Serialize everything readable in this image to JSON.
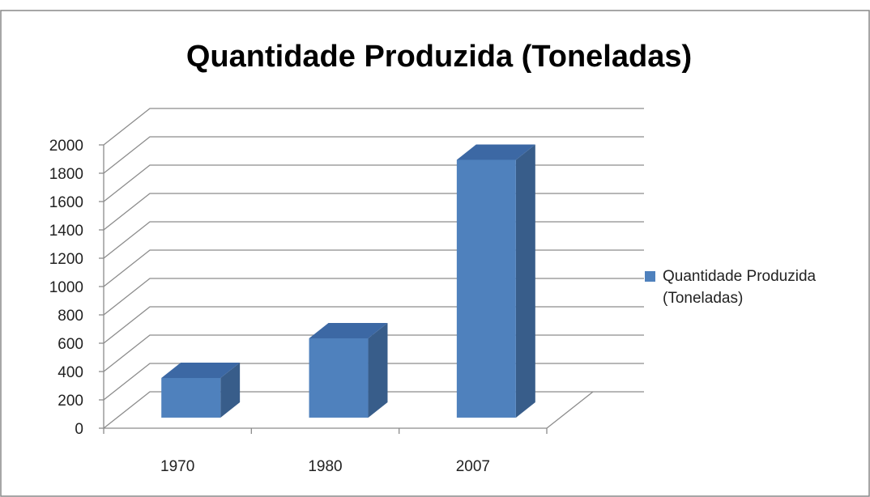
{
  "chart_data": {
    "type": "bar3d",
    "title": "Quantidade Produzida (Toneladas)",
    "categories": [
      "1970",
      "1980",
      "2007"
    ],
    "series": [
      {
        "name": "Quantidade Produzida (Toneladas)",
        "color": "#4f81bd",
        "values": [
          280,
          560,
          1820
        ]
      }
    ],
    "ylim": [
      0,
      2000
    ],
    "yticks": [
      0,
      200,
      400,
      600,
      800,
      1000,
      1200,
      1400,
      1600,
      1800,
      2000
    ],
    "grid": true,
    "legend": "right"
  }
}
